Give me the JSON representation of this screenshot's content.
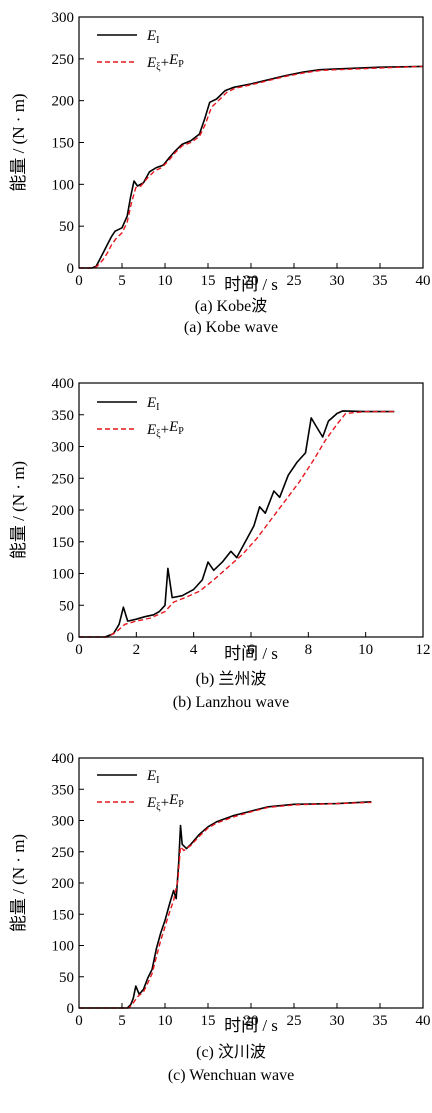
{
  "chart_data": [
    {
      "type": "line",
      "xlabel": "时间 / s",
      "ylabel": "能量 / (N · m)",
      "xlim": [
        0,
        40
      ],
      "ylim": [
        0,
        300
      ],
      "xticks": [
        "0",
        "5",
        "10",
        "15",
        "20",
        "25",
        "30",
        "35",
        "40"
      ],
      "yticks": [
        "0",
        "50",
        "100",
        "150",
        "200",
        "250",
        "300"
      ],
      "legend_position": "top-left",
      "caption_cn": "(a) Kobe波",
      "caption_en": "(a) Kobe wave",
      "series": [
        {
          "name": "E_I",
          "legend_main": "E",
          "legend_sub": "I",
          "color": "#000000",
          "dash": "solid",
          "points": [
            [
              0,
              0
            ],
            [
              1.5,
              0
            ],
            [
              2,
              2
            ],
            [
              2.5,
              12
            ],
            [
              3,
              22
            ],
            [
              3.4,
              30
            ],
            [
              3.8,
              38
            ],
            [
              4.2,
              44
            ],
            [
              5,
              48
            ],
            [
              5.6,
              62
            ],
            [
              6,
              85
            ],
            [
              6.4,
              104
            ],
            [
              6.8,
              98
            ],
            [
              7.5,
              102
            ],
            [
              8.2,
              115
            ],
            [
              9,
              120
            ],
            [
              9.8,
              123
            ],
            [
              10.5,
              132
            ],
            [
              11.2,
              140
            ],
            [
              12,
              148
            ],
            [
              13,
              152
            ],
            [
              14,
              160
            ],
            [
              14.6,
              178
            ],
            [
              15.2,
              198
            ],
            [
              16,
              202
            ],
            [
              17,
              212
            ],
            [
              18,
              216
            ],
            [
              20,
              220
            ],
            [
              22,
              225
            ],
            [
              24,
              230
            ],
            [
              26,
              234
            ],
            [
              28,
              237
            ],
            [
              30,
              238
            ],
            [
              35,
              240
            ],
            [
              40,
              241
            ]
          ]
        },
        {
          "name": "E_ξ+E_P",
          "legend_main": "E",
          "legend_sub": "ξ",
          "legend_plus": "+",
          "legend_main2": "E",
          "legend_sub2": "P",
          "color": "#e8161c",
          "dash": "dashed",
          "points": [
            [
              0,
              0
            ],
            [
              1.8,
              0
            ],
            [
              2.2,
              3
            ],
            [
              2.8,
              10
            ],
            [
              3.3,
              18
            ],
            [
              3.8,
              28
            ],
            [
              4.3,
              35
            ],
            [
              5,
              42
            ],
            [
              5.6,
              55
            ],
            [
              6.1,
              78
            ],
            [
              6.6,
              96
            ],
            [
              7.2,
              98
            ],
            [
              8,
              108
            ],
            [
              8.8,
              116
            ],
            [
              9.6,
              120
            ],
            [
              10.4,
              128
            ],
            [
              11.2,
              138
            ],
            [
              12,
              146
            ],
            [
              13,
              150
            ],
            [
              14,
              157
            ],
            [
              14.7,
              172
            ],
            [
              15.4,
              192
            ],
            [
              16.2,
              200
            ],
            [
              17.2,
              210
            ],
            [
              18.2,
              215
            ],
            [
              20,
              219
            ],
            [
              22,
              224
            ],
            [
              24,
              229
            ],
            [
              26,
              233
            ],
            [
              28,
              236
            ],
            [
              30,
              237
            ],
            [
              35,
              239
            ],
            [
              40,
              241
            ]
          ]
        }
      ]
    },
    {
      "type": "line",
      "xlabel": "时间 / s",
      "ylabel": "能量 / (N · m)",
      "xlim": [
        0,
        12
      ],
      "ylim": [
        0,
        400
      ],
      "xticks": [
        "0",
        "2",
        "4",
        "6",
        "8",
        "10",
        "12"
      ],
      "yticks": [
        "0",
        "50",
        "100",
        "150",
        "200",
        "250",
        "300",
        "350",
        "400"
      ],
      "legend_position": "top-left",
      "caption_cn": "(b) 兰州波",
      "caption_en": "(b) Lanzhou wave",
      "series": [
        {
          "name": "E_I",
          "legend_main": "E",
          "legend_sub": "I",
          "color": "#000000",
          "dash": "solid",
          "points": [
            [
              0,
              0
            ],
            [
              0.9,
              0
            ],
            [
              1.2,
              5
            ],
            [
              1.4,
              20
            ],
            [
              1.55,
              47
            ],
            [
              1.7,
              25
            ],
            [
              2,
              28
            ],
            [
              2.3,
              32
            ],
            [
              2.6,
              35
            ],
            [
              2.8,
              40
            ],
            [
              3,
              50
            ],
            [
              3.1,
              108
            ],
            [
              3.25,
              62
            ],
            [
              3.6,
              65
            ],
            [
              4,
              75
            ],
            [
              4.3,
              90
            ],
            [
              4.5,
              118
            ],
            [
              4.7,
              105
            ],
            [
              5,
              118
            ],
            [
              5.3,
              135
            ],
            [
              5.5,
              125
            ],
            [
              5.8,
              150
            ],
            [
              6.1,
              175
            ],
            [
              6.3,
              205
            ],
            [
              6.5,
              195
            ],
            [
              6.8,
              230
            ],
            [
              7,
              220
            ],
            [
              7.3,
              255
            ],
            [
              7.6,
              275
            ],
            [
              7.9,
              290
            ],
            [
              8.1,
              345
            ],
            [
              8.3,
              330
            ],
            [
              8.5,
              315
            ],
            [
              8.7,
              340
            ],
            [
              9,
              352
            ],
            [
              9.2,
              356
            ],
            [
              10,
              355
            ],
            [
              11,
              355
            ]
          ]
        },
        {
          "name": "E_ξ+E_P",
          "legend_main": "E",
          "legend_sub": "ξ",
          "legend_plus": "+",
          "legend_main2": "E",
          "legend_sub2": "P",
          "color": "#e8161c",
          "dash": "dashed",
          "points": [
            [
              0,
              0
            ],
            [
              1,
              0
            ],
            [
              1.3,
              8
            ],
            [
              1.6,
              20
            ],
            [
              2,
              25
            ],
            [
              2.5,
              30
            ],
            [
              3,
              40
            ],
            [
              3.3,
              55
            ],
            [
              3.7,
              62
            ],
            [
              4.2,
              72
            ],
            [
              4.7,
              90
            ],
            [
              5.2,
              110
            ],
            [
              5.7,
              130
            ],
            [
              6.2,
              155
            ],
            [
              6.7,
              185
            ],
            [
              7.2,
              215
            ],
            [
              7.7,
              245
            ],
            [
              8.2,
              280
            ],
            [
              8.6,
              310
            ],
            [
              9,
              335
            ],
            [
              9.3,
              352
            ],
            [
              10,
              355
            ],
            [
              11,
              355
            ]
          ]
        }
      ]
    },
    {
      "type": "line",
      "xlabel": "时间 / s",
      "ylabel": "能量 / (N · m)",
      "xlim": [
        0,
        40
      ],
      "ylim": [
        0,
        400
      ],
      "xticks": [
        "0",
        "5",
        "10",
        "15",
        "20",
        "25",
        "30",
        "35",
        "40"
      ],
      "yticks": [
        "0",
        "50",
        "100",
        "150",
        "200",
        "250",
        "300",
        "350",
        "400"
      ],
      "legend_position": "top-left",
      "caption_cn": "(c) 汶川波",
      "caption_en": "(c) Wenchuan wave",
      "series": [
        {
          "name": "E_I",
          "legend_main": "E",
          "legend_sub": "I",
          "color": "#000000",
          "dash": "solid",
          "points": [
            [
              0,
              0
            ],
            [
              5.6,
              0
            ],
            [
              6,
              5
            ],
            [
              6.3,
              15
            ],
            [
              6.6,
              35
            ],
            [
              7,
              22
            ],
            [
              7.5,
              30
            ],
            [
              8,
              48
            ],
            [
              8.5,
              62
            ],
            [
              9,
              95
            ],
            [
              9.5,
              120
            ],
            [
              10,
              140
            ],
            [
              10.5,
              165
            ],
            [
              11,
              188
            ],
            [
              11.3,
              175
            ],
            [
              11.6,
              235
            ],
            [
              11.8,
              292
            ],
            [
              12,
              262
            ],
            [
              12.5,
              255
            ],
            [
              13,
              262
            ],
            [
              14,
              278
            ],
            [
              15,
              290
            ],
            [
              16,
              298
            ],
            [
              18,
              308
            ],
            [
              20,
              315
            ],
            [
              22,
              322
            ],
            [
              25,
              326
            ],
            [
              30,
              327
            ],
            [
              34,
              330
            ]
          ]
        },
        {
          "name": "E_ξ+E_P",
          "legend_main": "E",
          "legend_sub": "ξ",
          "legend_plus": "+",
          "legend_main2": "E",
          "legend_sub2": "P",
          "color": "#e8161c",
          "dash": "dashed",
          "points": [
            [
              0,
              0
            ],
            [
              5.8,
              0
            ],
            [
              6.3,
              8
            ],
            [
              6.8,
              18
            ],
            [
              7.5,
              26
            ],
            [
              8,
              40
            ],
            [
              8.5,
              55
            ],
            [
              9,
              82
            ],
            [
              9.5,
              108
            ],
            [
              10,
              130
            ],
            [
              10.5,
              152
            ],
            [
              11,
              172
            ],
            [
              11.5,
              205
            ],
            [
              11.8,
              258
            ],
            [
              12.2,
              252
            ],
            [
              13,
              260
            ],
            [
              14,
              275
            ],
            [
              15,
              288
            ],
            [
              16,
              296
            ],
            [
              18,
              306
            ],
            [
              20,
              314
            ],
            [
              22,
              321
            ],
            [
              25,
              325
            ],
            [
              30,
              327
            ],
            [
              34,
              329
            ]
          ]
        }
      ]
    }
  ]
}
